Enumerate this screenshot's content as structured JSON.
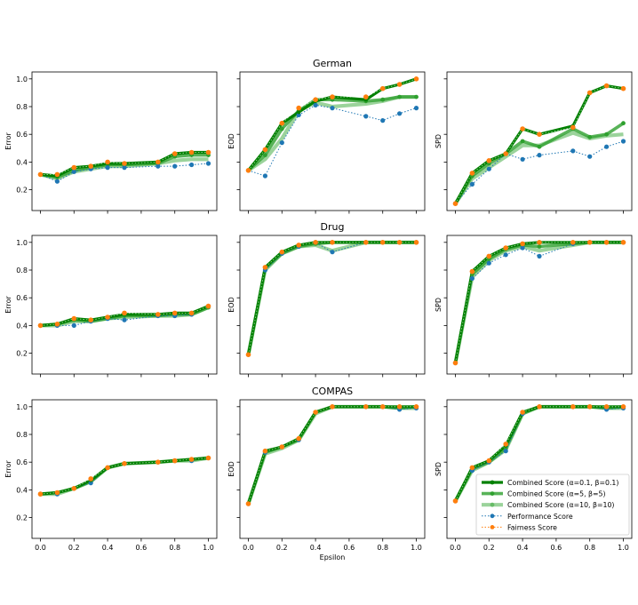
{
  "chart_data": {
    "type": "line",
    "xlabel": "Epsilon",
    "x": [
      0.0,
      0.1,
      0.2,
      0.3,
      0.4,
      0.5,
      0.7,
      0.8,
      0.9,
      1.0
    ],
    "xticks": [
      0.0,
      0.2,
      0.4,
      0.6,
      0.8,
      1.0
    ],
    "xtick_labels": [
      "0.0",
      "0.2",
      "0.4",
      "0.6",
      "0.8",
      "1.0"
    ],
    "xlim": [
      -0.05,
      1.05
    ],
    "ylim": [
      0.05,
      1.05
    ],
    "yticks": [
      0.2,
      0.4,
      0.6,
      0.8,
      1.0
    ],
    "ytick_labels": [
      "0.2",
      "0.4",
      "0.6",
      "0.8",
      "1.0"
    ],
    "colors": {
      "combined_1": "#008000",
      "combined_2": "#2ea02e",
      "combined_3": "#66bb66",
      "performance": "#1f77b4",
      "fairness": "#ff7f0e",
      "fairness_core": "#ffffff"
    },
    "legend": {
      "placement": "lower-right of bottom-right panel",
      "entries": [
        {
          "key": "combined_1",
          "label": "Combined Score (α=0.1, β=0.1)"
        },
        {
          "key": "combined_2",
          "label": "Combined Score (α=5, β=5)"
        },
        {
          "key": "combined_3",
          "label": "Combined Score (α=10, β=10)"
        },
        {
          "key": "performance",
          "label": "Performance Score"
        },
        {
          "key": "fairness",
          "label": "Fairness Score"
        }
      ]
    },
    "rows": [
      {
        "dataset": "German",
        "panels": [
          {
            "ylabel": "Error",
            "series": {
              "combined_1": [
                0.31,
                0.3,
                0.36,
                0.37,
                0.39,
                0.39,
                0.4,
                0.46,
                0.47,
                0.47
              ],
              "combined_2": [
                0.31,
                0.29,
                0.34,
                0.36,
                0.38,
                0.38,
                0.39,
                0.44,
                0.45,
                0.45
              ],
              "combined_3": [
                0.31,
                0.28,
                0.33,
                0.35,
                0.37,
                0.37,
                0.39,
                0.41,
                0.42,
                0.42
              ],
              "performance": [
                0.31,
                0.26,
                0.33,
                0.35,
                0.36,
                0.36,
                0.37,
                0.37,
                0.38,
                0.39
              ],
              "fairness": [
                0.31,
                0.31,
                0.36,
                0.37,
                0.4,
                0.39,
                0.4,
                0.46,
                0.47,
                0.47
              ]
            }
          },
          {
            "ylabel": "EOD",
            "series": {
              "combined_1": [
                0.34,
                0.49,
                0.68,
                0.76,
                0.84,
                0.87,
                0.85,
                0.93,
                0.96,
                1.0
              ],
              "combined_2": [
                0.34,
                0.45,
                0.64,
                0.77,
                0.85,
                0.85,
                0.84,
                0.85,
                0.87,
                0.87
              ],
              "combined_3": [
                0.34,
                0.42,
                0.57,
                0.77,
                0.83,
                0.8,
                0.82,
                0.84,
                0.87,
                0.87
              ],
              "performance": [
                0.34,
                0.3,
                0.54,
                0.74,
                0.81,
                0.79,
                0.73,
                0.7,
                0.75,
                0.79
              ],
              "fairness": [
                0.34,
                0.49,
                0.68,
                0.79,
                0.85,
                0.87,
                0.87,
                0.93,
                0.96,
                1.0
              ]
            }
          },
          {
            "ylabel": "SPD",
            "series": {
              "combined_1": [
                0.1,
                0.32,
                0.41,
                0.46,
                0.64,
                0.6,
                0.66,
                0.9,
                0.95,
                0.93
              ],
              "combined_2": [
                0.1,
                0.3,
                0.39,
                0.46,
                0.55,
                0.51,
                0.64,
                0.58,
                0.6,
                0.68
              ],
              "combined_3": [
                0.1,
                0.28,
                0.36,
                0.44,
                0.52,
                0.52,
                0.61,
                0.57,
                0.59,
                0.6
              ],
              "performance": [
                0.1,
                0.24,
                0.35,
                0.46,
                0.42,
                0.45,
                0.48,
                0.44,
                0.51,
                0.55
              ],
              "fairness": [
                0.1,
                0.32,
                0.41,
                0.46,
                0.64,
                0.6,
                0.65,
                0.9,
                0.95,
                0.93
              ]
            }
          }
        ]
      },
      {
        "dataset": "Drug",
        "panels": [
          {
            "ylabel": "Error",
            "series": {
              "combined_1": [
                0.4,
                0.41,
                0.45,
                0.44,
                0.46,
                0.48,
                0.48,
                0.49,
                0.49,
                0.54
              ],
              "combined_2": [
                0.4,
                0.41,
                0.44,
                0.43,
                0.45,
                0.47,
                0.47,
                0.48,
                0.48,
                0.53
              ],
              "combined_3": [
                0.4,
                0.4,
                0.43,
                0.43,
                0.45,
                0.46,
                0.47,
                0.47,
                0.48,
                0.53
              ],
              "performance": [
                0.4,
                0.4,
                0.4,
                0.43,
                0.45,
                0.44,
                0.47,
                0.47,
                0.48,
                0.54
              ],
              "fairness": [
                0.4,
                0.41,
                0.45,
                0.44,
                0.46,
                0.49,
                0.48,
                0.49,
                0.49,
                0.54
              ]
            }
          },
          {
            "ylabel": "EOD",
            "series": {
              "combined_1": [
                0.19,
                0.82,
                0.93,
                0.98,
                1.0,
                1.0,
                1.0,
                1.0,
                1.0,
                1.0
              ],
              "combined_2": [
                0.19,
                0.81,
                0.92,
                0.97,
                0.99,
                1.0,
                1.0,
                1.0,
                1.0,
                1.0
              ],
              "combined_3": [
                0.19,
                0.8,
                0.92,
                0.97,
                0.98,
                0.94,
                1.0,
                1.0,
                1.0,
                1.0
              ],
              "performance": [
                0.19,
                0.8,
                0.92,
                0.97,
                1.0,
                0.93,
                1.0,
                1.0,
                1.0,
                1.0
              ],
              "fairness": [
                0.19,
                0.82,
                0.93,
                0.98,
                1.0,
                1.0,
                1.0,
                1.0,
                1.0,
                1.0
              ]
            }
          },
          {
            "ylabel": "SPD",
            "series": {
              "combined_1": [
                0.13,
                0.79,
                0.9,
                0.96,
                0.99,
                1.0,
                1.0,
                1.0,
                1.0,
                1.0
              ],
              "combined_2": [
                0.13,
                0.77,
                0.88,
                0.95,
                0.98,
                0.97,
                0.99,
                1.0,
                1.0,
                1.0
              ],
              "combined_3": [
                0.13,
                0.75,
                0.87,
                0.94,
                0.97,
                0.94,
                0.98,
                1.0,
                1.0,
                1.0
              ],
              "performance": [
                0.13,
                0.74,
                0.85,
                0.91,
                0.96,
                0.9,
                0.99,
                1.0,
                1.0,
                1.0
              ],
              "fairness": [
                0.13,
                0.79,
                0.9,
                0.96,
                0.99,
                1.0,
                1.0,
                1.0,
                1.0,
                1.0
              ]
            }
          }
        ]
      },
      {
        "dataset": "COMPAS",
        "panels": [
          {
            "ylabel": "Error",
            "series": {
              "combined_1": [
                0.37,
                0.38,
                0.41,
                0.47,
                0.56,
                0.59,
                0.6,
                0.61,
                0.62,
                0.63
              ],
              "combined_2": [
                0.37,
                0.38,
                0.41,
                0.46,
                0.56,
                0.59,
                0.6,
                0.61,
                0.62,
                0.63
              ],
              "combined_3": [
                0.37,
                0.37,
                0.41,
                0.46,
                0.56,
                0.59,
                0.6,
                0.61,
                0.61,
                0.63
              ],
              "performance": [
                0.37,
                0.37,
                0.41,
                0.45,
                0.56,
                0.59,
                0.6,
                0.61,
                0.61,
                0.63
              ],
              "fairness": [
                0.37,
                0.38,
                0.41,
                0.48,
                0.56,
                0.59,
                0.6,
                0.61,
                0.62,
                0.63
              ]
            }
          },
          {
            "ylabel": "EOD",
            "series": {
              "combined_1": [
                0.3,
                0.68,
                0.71,
                0.77,
                0.96,
                1.0,
                1.0,
                1.0,
                1.0,
                1.0
              ],
              "combined_2": [
                0.3,
                0.67,
                0.71,
                0.76,
                0.96,
                1.0,
                1.0,
                1.0,
                0.99,
                1.0
              ],
              "combined_3": [
                0.3,
                0.66,
                0.7,
                0.76,
                0.95,
                1.0,
                1.0,
                1.0,
                0.99,
                0.99
              ],
              "performance": [
                0.3,
                0.67,
                0.71,
                0.76,
                0.96,
                1.0,
                1.0,
                1.0,
                0.98,
                0.99
              ],
              "fairness": [
                0.3,
                0.68,
                0.71,
                0.77,
                0.96,
                1.0,
                1.0,
                1.0,
                1.0,
                1.0
              ]
            }
          },
          {
            "ylabel": "SPD",
            "series": {
              "combined_1": [
                0.32,
                0.56,
                0.61,
                0.72,
                0.96,
                1.0,
                1.0,
                1.0,
                1.0,
                1.0
              ],
              "combined_2": [
                0.32,
                0.55,
                0.6,
                0.7,
                0.95,
                1.0,
                1.0,
                1.0,
                0.99,
                1.0
              ],
              "combined_3": [
                0.32,
                0.54,
                0.6,
                0.69,
                0.95,
                1.0,
                1.0,
                1.0,
                0.99,
                0.99
              ],
              "performance": [
                0.32,
                0.54,
                0.6,
                0.68,
                0.95,
                1.0,
                1.0,
                1.0,
                0.98,
                0.99
              ],
              "fairness": [
                0.32,
                0.56,
                0.61,
                0.73,
                0.96,
                1.0,
                1.0,
                1.0,
                1.0,
                1.0
              ]
            }
          }
        ]
      }
    ]
  }
}
